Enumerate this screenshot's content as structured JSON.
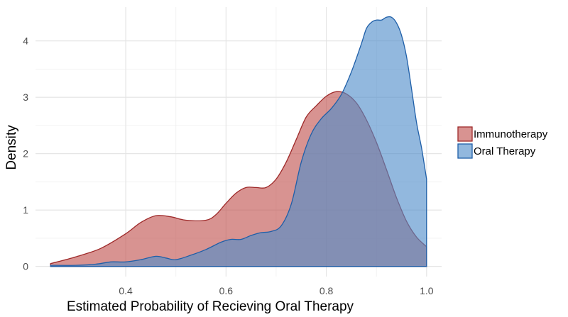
{
  "chart_data": {
    "type": "area",
    "title": "",
    "xlabel": "Estimated Probability of Recieving Oral Therapy",
    "ylabel": "Density",
    "xlim": [
      0.22,
      1.03
    ],
    "ylim": [
      -0.18,
      4.6
    ],
    "x_ticks": [
      0.4,
      0.6,
      0.8,
      1.0
    ],
    "x_tick_labels": [
      "0.4",
      "0.6",
      "0.8",
      "1.0"
    ],
    "y_ticks": [
      0,
      1,
      2,
      3,
      4
    ],
    "y_tick_labels": [
      "0",
      "1",
      "2",
      "3",
      "4"
    ],
    "grid": true,
    "legend_position": "right",
    "series": [
      {
        "name": "Immunotherapy",
        "fill": "#c0504d",
        "stroke": "#9e2a2a",
        "x": [
          0.25,
          0.3,
          0.35,
          0.4,
          0.43,
          0.46,
          0.49,
          0.52,
          0.56,
          0.58,
          0.6,
          0.62,
          0.64,
          0.66,
          0.68,
          0.7,
          0.72,
          0.74,
          0.76,
          0.78,
          0.8,
          0.82,
          0.84,
          0.86,
          0.88,
          0.9,
          0.92,
          0.94,
          0.96,
          0.98,
          1.0
        ],
        "y": [
          0.05,
          0.17,
          0.32,
          0.58,
          0.78,
          0.9,
          0.88,
          0.82,
          0.82,
          0.92,
          1.12,
          1.3,
          1.4,
          1.4,
          1.4,
          1.55,
          1.85,
          2.25,
          2.65,
          2.85,
          3.02,
          3.1,
          3.06,
          2.9,
          2.6,
          2.2,
          1.72,
          1.22,
          0.8,
          0.52,
          0.35
        ]
      },
      {
        "name": "Oral Therapy",
        "fill": "#4f8cc9",
        "stroke": "#1f5fa8",
        "x": [
          0.25,
          0.3,
          0.34,
          0.37,
          0.4,
          0.43,
          0.46,
          0.48,
          0.5,
          0.53,
          0.56,
          0.59,
          0.61,
          0.63,
          0.65,
          0.67,
          0.69,
          0.71,
          0.73,
          0.75,
          0.77,
          0.79,
          0.81,
          0.83,
          0.85,
          0.87,
          0.88,
          0.89,
          0.9,
          0.91,
          0.92,
          0.93,
          0.94,
          0.95,
          0.96,
          0.97,
          0.98,
          0.99,
          1.0
        ],
        "y": [
          0.02,
          0.02,
          0.04,
          0.08,
          0.08,
          0.12,
          0.18,
          0.15,
          0.12,
          0.2,
          0.3,
          0.43,
          0.48,
          0.48,
          0.55,
          0.6,
          0.62,
          0.72,
          1.1,
          1.85,
          2.35,
          2.62,
          2.8,
          3.05,
          3.45,
          3.95,
          4.22,
          4.33,
          4.37,
          4.37,
          4.42,
          4.42,
          4.32,
          4.1,
          3.72,
          3.15,
          2.55,
          2.1,
          1.55
        ]
      }
    ]
  }
}
